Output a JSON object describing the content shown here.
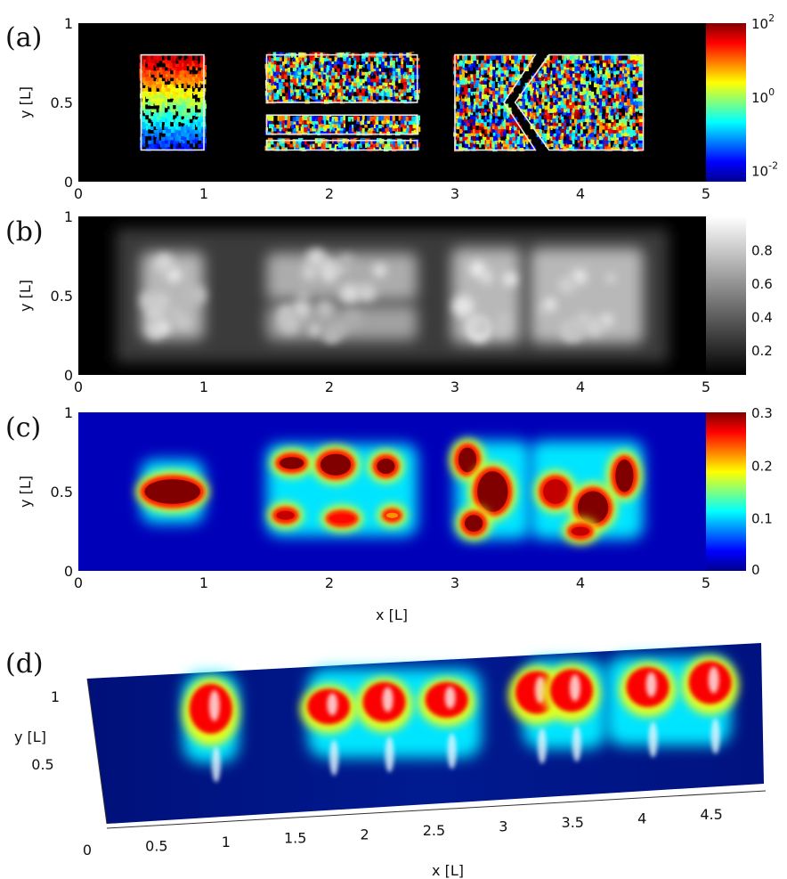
{
  "chart_data": [
    {
      "id": "a",
      "type": "heatmap",
      "panel_label": "(a)",
      "ylabel": "y [L]",
      "xlim": [
        0,
        5
      ],
      "ylim": [
        0,
        1
      ],
      "x_ticks": [
        "0",
        "1",
        "2",
        "3",
        "4",
        "5"
      ],
      "y_ticks": [
        "0",
        "0.5",
        "1"
      ],
      "colorbar": {
        "colormap": "jet",
        "scale": "log",
        "range": [
          0.005,
          100
        ],
        "tick_labels": [
          "10^2",
          "10^0",
          "10^-2"
        ]
      },
      "background_color": "#000000",
      "regions": [
        {
          "shape": "rectangle",
          "x": [
            0.5,
            1.0
          ],
          "y": [
            0.2,
            0.8
          ]
        },
        {
          "shape": "rectangle",
          "x": [
            1.5,
            2.7
          ],
          "y": [
            0.5,
            0.8
          ]
        },
        {
          "shape": "rectangle",
          "x": [
            1.5,
            2.7
          ],
          "y": [
            0.3,
            0.42
          ]
        },
        {
          "shape": "rectangle",
          "x": [
            1.5,
            2.7
          ],
          "y": [
            0.2,
            0.26
          ]
        },
        {
          "shape": "polygon",
          "points": [
            [
              3.0,
              0.2
            ],
            [
              3.0,
              0.8
            ],
            [
              3.64,
              0.8
            ],
            [
              3.39,
              0.5
            ],
            [
              3.64,
              0.2
            ]
          ]
        },
        {
          "shape": "polygon",
          "points": [
            [
              3.75,
              0.2
            ],
            [
              4.5,
              0.2
            ],
            [
              4.5,
              0.8
            ],
            [
              3.75,
              0.8
            ],
            [
              3.48,
              0.5
            ]
          ]
        }
      ]
    },
    {
      "id": "b",
      "type": "heatmap",
      "panel_label": "(b)",
      "ylabel": "y [L]",
      "xlim": [
        0,
        5
      ],
      "ylim": [
        0,
        1
      ],
      "x_ticks": [
        "0",
        "1",
        "2",
        "3",
        "4",
        "5"
      ],
      "y_ticks": [
        "0",
        "0.5",
        "1"
      ],
      "colorbar": {
        "colormap": "gray",
        "scale": "linear",
        "range": [
          0.05,
          1.0
        ],
        "tick_labels": [
          "0.8",
          "0.6",
          "0.4",
          "0.2"
        ]
      },
      "blobs": [
        {
          "x": 0.75,
          "y": 0.5,
          "w": 0.5,
          "h": 0.55,
          "value": 0.8
        },
        {
          "x": 2.1,
          "y": 0.62,
          "w": 1.2,
          "h": 0.3,
          "value": 0.75
        },
        {
          "x": 2.1,
          "y": 0.33,
          "w": 1.2,
          "h": 0.22,
          "value": 0.7
        },
        {
          "x": 3.25,
          "y": 0.5,
          "w": 0.55,
          "h": 0.6,
          "value": 0.8
        },
        {
          "x": 4.05,
          "y": 0.5,
          "w": 0.9,
          "h": 0.6,
          "value": 0.8
        }
      ]
    },
    {
      "id": "c",
      "type": "heatmap",
      "panel_label": "(c)",
      "xlabel": "x [L]",
      "ylabel": "y [L]",
      "xlim": [
        0,
        5
      ],
      "ylim": [
        0,
        1
      ],
      "x_ticks": [
        "0",
        "1",
        "2",
        "3",
        "4",
        "5"
      ],
      "y_ticks": [
        "0",
        "0.5",
        "1"
      ],
      "colorbar": {
        "colormap": "jet",
        "scale": "linear",
        "range": [
          0,
          0.3
        ],
        "tick_labels": [
          "0.3",
          "0.2",
          "0.1",
          "0"
        ]
      },
      "blobs": [
        {
          "x": 0.75,
          "y": 0.5,
          "w": 0.5,
          "h": 0.2,
          "value": 0.32
        },
        {
          "x": 1.7,
          "y": 0.68,
          "w": 0.25,
          "h": 0.12,
          "value": 0.3
        },
        {
          "x": 2.05,
          "y": 0.67,
          "w": 0.3,
          "h": 0.18,
          "value": 0.32
        },
        {
          "x": 2.45,
          "y": 0.66,
          "w": 0.2,
          "h": 0.14,
          "value": 0.3
        },
        {
          "x": 1.65,
          "y": 0.35,
          "w": 0.2,
          "h": 0.1,
          "value": 0.28
        },
        {
          "x": 2.1,
          "y": 0.33,
          "w": 0.25,
          "h": 0.1,
          "value": 0.26
        },
        {
          "x": 2.5,
          "y": 0.35,
          "w": 0.15,
          "h": 0.08,
          "value": 0.22
        },
        {
          "x": 3.1,
          "y": 0.7,
          "w": 0.2,
          "h": 0.2,
          "value": 0.32
        },
        {
          "x": 3.3,
          "y": 0.5,
          "w": 0.3,
          "h": 0.3,
          "value": 0.32
        },
        {
          "x": 3.15,
          "y": 0.3,
          "w": 0.2,
          "h": 0.15,
          "value": 0.3
        },
        {
          "x": 3.8,
          "y": 0.5,
          "w": 0.25,
          "h": 0.2,
          "value": 0.28
        },
        {
          "x": 4.1,
          "y": 0.4,
          "w": 0.3,
          "h": 0.25,
          "value": 0.3
        },
        {
          "x": 4.35,
          "y": 0.6,
          "w": 0.2,
          "h": 0.25,
          "value": 0.3
        },
        {
          "x": 4.0,
          "y": 0.25,
          "w": 0.2,
          "h": 0.1,
          "value": 0.28
        }
      ]
    },
    {
      "id": "d",
      "type": "surface",
      "panel_label": "(d)",
      "xlabel": "x [L]",
      "ylabel": "y [L]",
      "colormap": "jet",
      "x_ticks": [
        "0",
        "0.5",
        "1",
        "1.5",
        "2",
        "2.5",
        "3",
        "3.5",
        "4",
        "4.5"
      ],
      "y_ticks": [
        "0.5",
        "1"
      ],
      "peaks": [
        {
          "x": 0.75,
          "height": 0.35
        },
        {
          "x": 1.6,
          "height": 0.25
        },
        {
          "x": 2.0,
          "height": 0.28
        },
        {
          "x": 2.45,
          "height": 0.25
        },
        {
          "x": 3.1,
          "height": 0.3
        },
        {
          "x": 3.35,
          "height": 0.3
        },
        {
          "x": 3.9,
          "height": 0.28
        },
        {
          "x": 4.35,
          "height": 0.3
        }
      ]
    }
  ]
}
